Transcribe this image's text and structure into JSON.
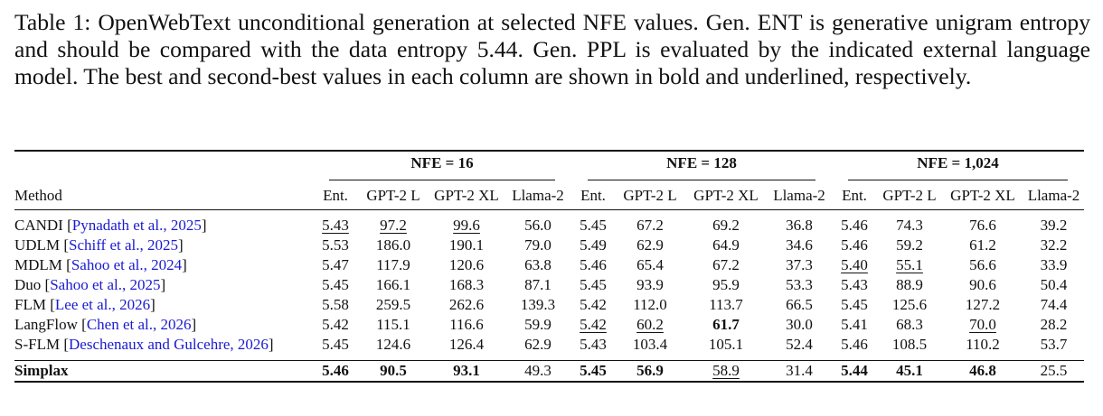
{
  "caption": {
    "part1": "Table 1: OpenWebText unconditional generation at selected NFE values. Gen. ENT is generative unigram entropy and should be compared with the data entropy ",
    "entropy": "5.44",
    "part2": ". Gen. PPL is evaluated by the indicated external language model. The best and second-best values in each column are shown in bold and underlined, respectively."
  },
  "groups": [
    "NFE = 16",
    "NFE = 128",
    "NFE = 1,024"
  ],
  "columns": [
    "Method",
    "Ent.",
    "GPT-2 L",
    "GPT-2 XL",
    "Llama-2",
    "Ent.",
    "GPT-2 L",
    "GPT-2 XL",
    "Llama-2",
    "Ent.",
    "GPT-2 L",
    "GPT-2 XL",
    "Llama-2"
  ],
  "rows": [
    {
      "name": "CANDI",
      "cite": "Pynadath et al., 2025",
      "values": [
        "5.43",
        "97.2",
        "99.6",
        "56.0",
        "5.45",
        "67.2",
        "69.2",
        "36.8",
        "5.46",
        "74.3",
        "76.6",
        "39.2"
      ]
    },
    {
      "name": "UDLM",
      "cite": "Schiff et al., 2025",
      "values": [
        "5.53",
        "186.0",
        "190.1",
        "79.0",
        "5.49",
        "62.9",
        "64.9",
        "34.6",
        "5.46",
        "59.2",
        "61.2",
        "32.2"
      ]
    },
    {
      "name": "MDLM",
      "cite": "Sahoo et al., 2024",
      "values": [
        "5.47",
        "117.9",
        "120.6",
        "63.8",
        "5.46",
        "65.4",
        "67.2",
        "37.3",
        "5.40",
        "55.1",
        "56.6",
        "33.9"
      ]
    },
    {
      "name": "Duo",
      "cite": "Sahoo et al., 2025",
      "values": [
        "5.45",
        "166.1",
        "168.3",
        "87.1",
        "5.45",
        "93.9",
        "95.9",
        "53.3",
        "5.43",
        "88.9",
        "90.6",
        "50.4"
      ]
    },
    {
      "name": "FLM",
      "cite": "Lee et al., 2026",
      "values": [
        "5.58",
        "259.5",
        "262.6",
        "139.3",
        "5.42",
        "112.0",
        "113.7",
        "66.5",
        "5.45",
        "125.6",
        "127.2",
        "74.4"
      ]
    },
    {
      "name": "LangFlow",
      "cite": "Chen et al., 2026",
      "values": [
        "5.42",
        "115.1",
        "116.6",
        "59.9",
        "5.42",
        "60.2",
        "61.7",
        "30.0",
        "5.41",
        "68.3",
        "70.0",
        "28.2"
      ]
    },
    {
      "name": "S-FLM",
      "cite": "Deschenaux and Gulcehre, 2026",
      "values": [
        "5.45",
        "124.6",
        "126.4",
        "62.9",
        "5.43",
        "103.4",
        "105.1",
        "52.4",
        "5.46",
        "108.5",
        "110.2",
        "53.7"
      ]
    }
  ],
  "simplax": {
    "name": "Simplax",
    "values": [
      "5.46",
      "90.5",
      "93.1",
      "49.3",
      "5.45",
      "56.9",
      "58.9",
      "31.4",
      "5.44",
      "45.1",
      "46.8",
      "25.5"
    ]
  },
  "styles": {
    "underline": [
      "0-1",
      "0-2",
      "0-3",
      "5-5",
      "5-6",
      "2-9",
      "2-10",
      "5-11"
    ],
    "bold": [
      "5-7"
    ],
    "simplax_bold": [
      1,
      2,
      3,
      5,
      6,
      9,
      10,
      11
    ],
    "simplax_underline": [
      7
    ]
  }
}
